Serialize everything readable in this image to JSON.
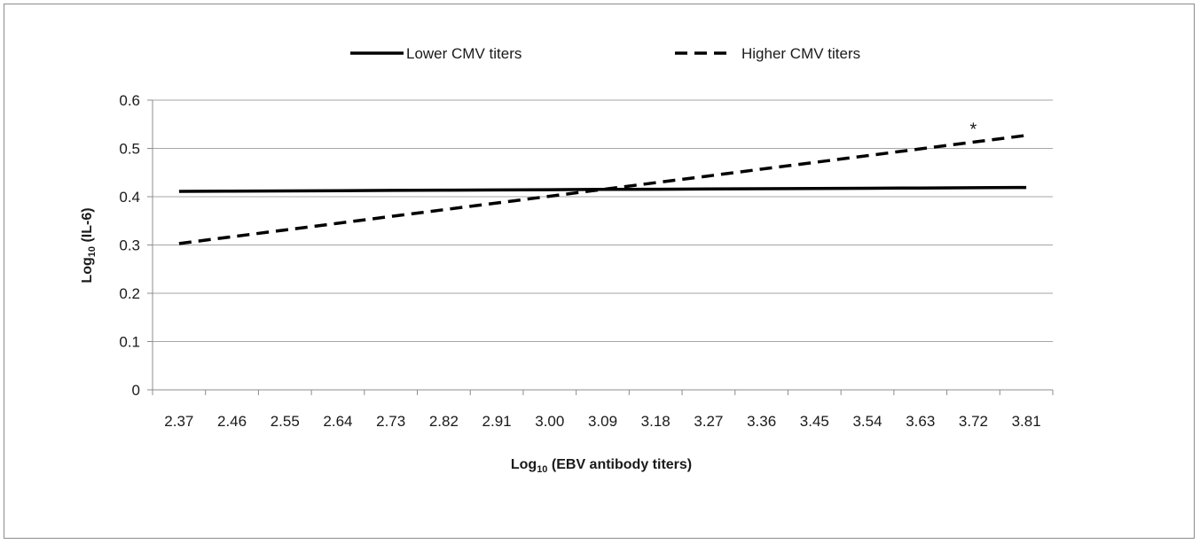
{
  "chart_data": {
    "type": "line",
    "title": "",
    "xlabel": {
      "prefix": "Log",
      "sub": "10",
      "suffix": " (EBV antibody titers)"
    },
    "ylabel": {
      "prefix": "Log",
      "sub": "10",
      "suffix": " (IL-6)"
    },
    "categories": [
      "2.37",
      "2.46",
      "2.55",
      "2.64",
      "2.73",
      "2.82",
      "2.91",
      "3.00",
      "3.09",
      "3.18",
      "3.27",
      "3.36",
      "3.45",
      "3.54",
      "3.63",
      "3.72",
      "3.81"
    ],
    "ylim": [
      0,
      0.6
    ],
    "yticks": [
      "0",
      "0.1",
      "0.2",
      "0.3",
      "0.4",
      "0.5",
      "0.6"
    ],
    "grid": true,
    "legend_position": "top-center",
    "series": [
      {
        "name": "Lower CMV titers",
        "style": "solid",
        "color": "#000000",
        "values": [
          0.411,
          0.4115,
          0.412,
          0.4125,
          0.413,
          0.4135,
          0.414,
          0.4145,
          0.415,
          0.4155,
          0.416,
          0.4165,
          0.417,
          0.4175,
          0.418,
          0.4185,
          0.419
        ]
      },
      {
        "name": "Higher CMV titers",
        "style": "dashed",
        "color": "#000000",
        "values": [
          0.303,
          0.317,
          0.331,
          0.345,
          0.359,
          0.373,
          0.387,
          0.401,
          0.415,
          0.429,
          0.443,
          0.457,
          0.471,
          0.485,
          0.499,
          0.513,
          0.527
        ]
      }
    ],
    "annotations": [
      {
        "text": "*",
        "x": "3.72",
        "y": 0.535
      }
    ]
  }
}
